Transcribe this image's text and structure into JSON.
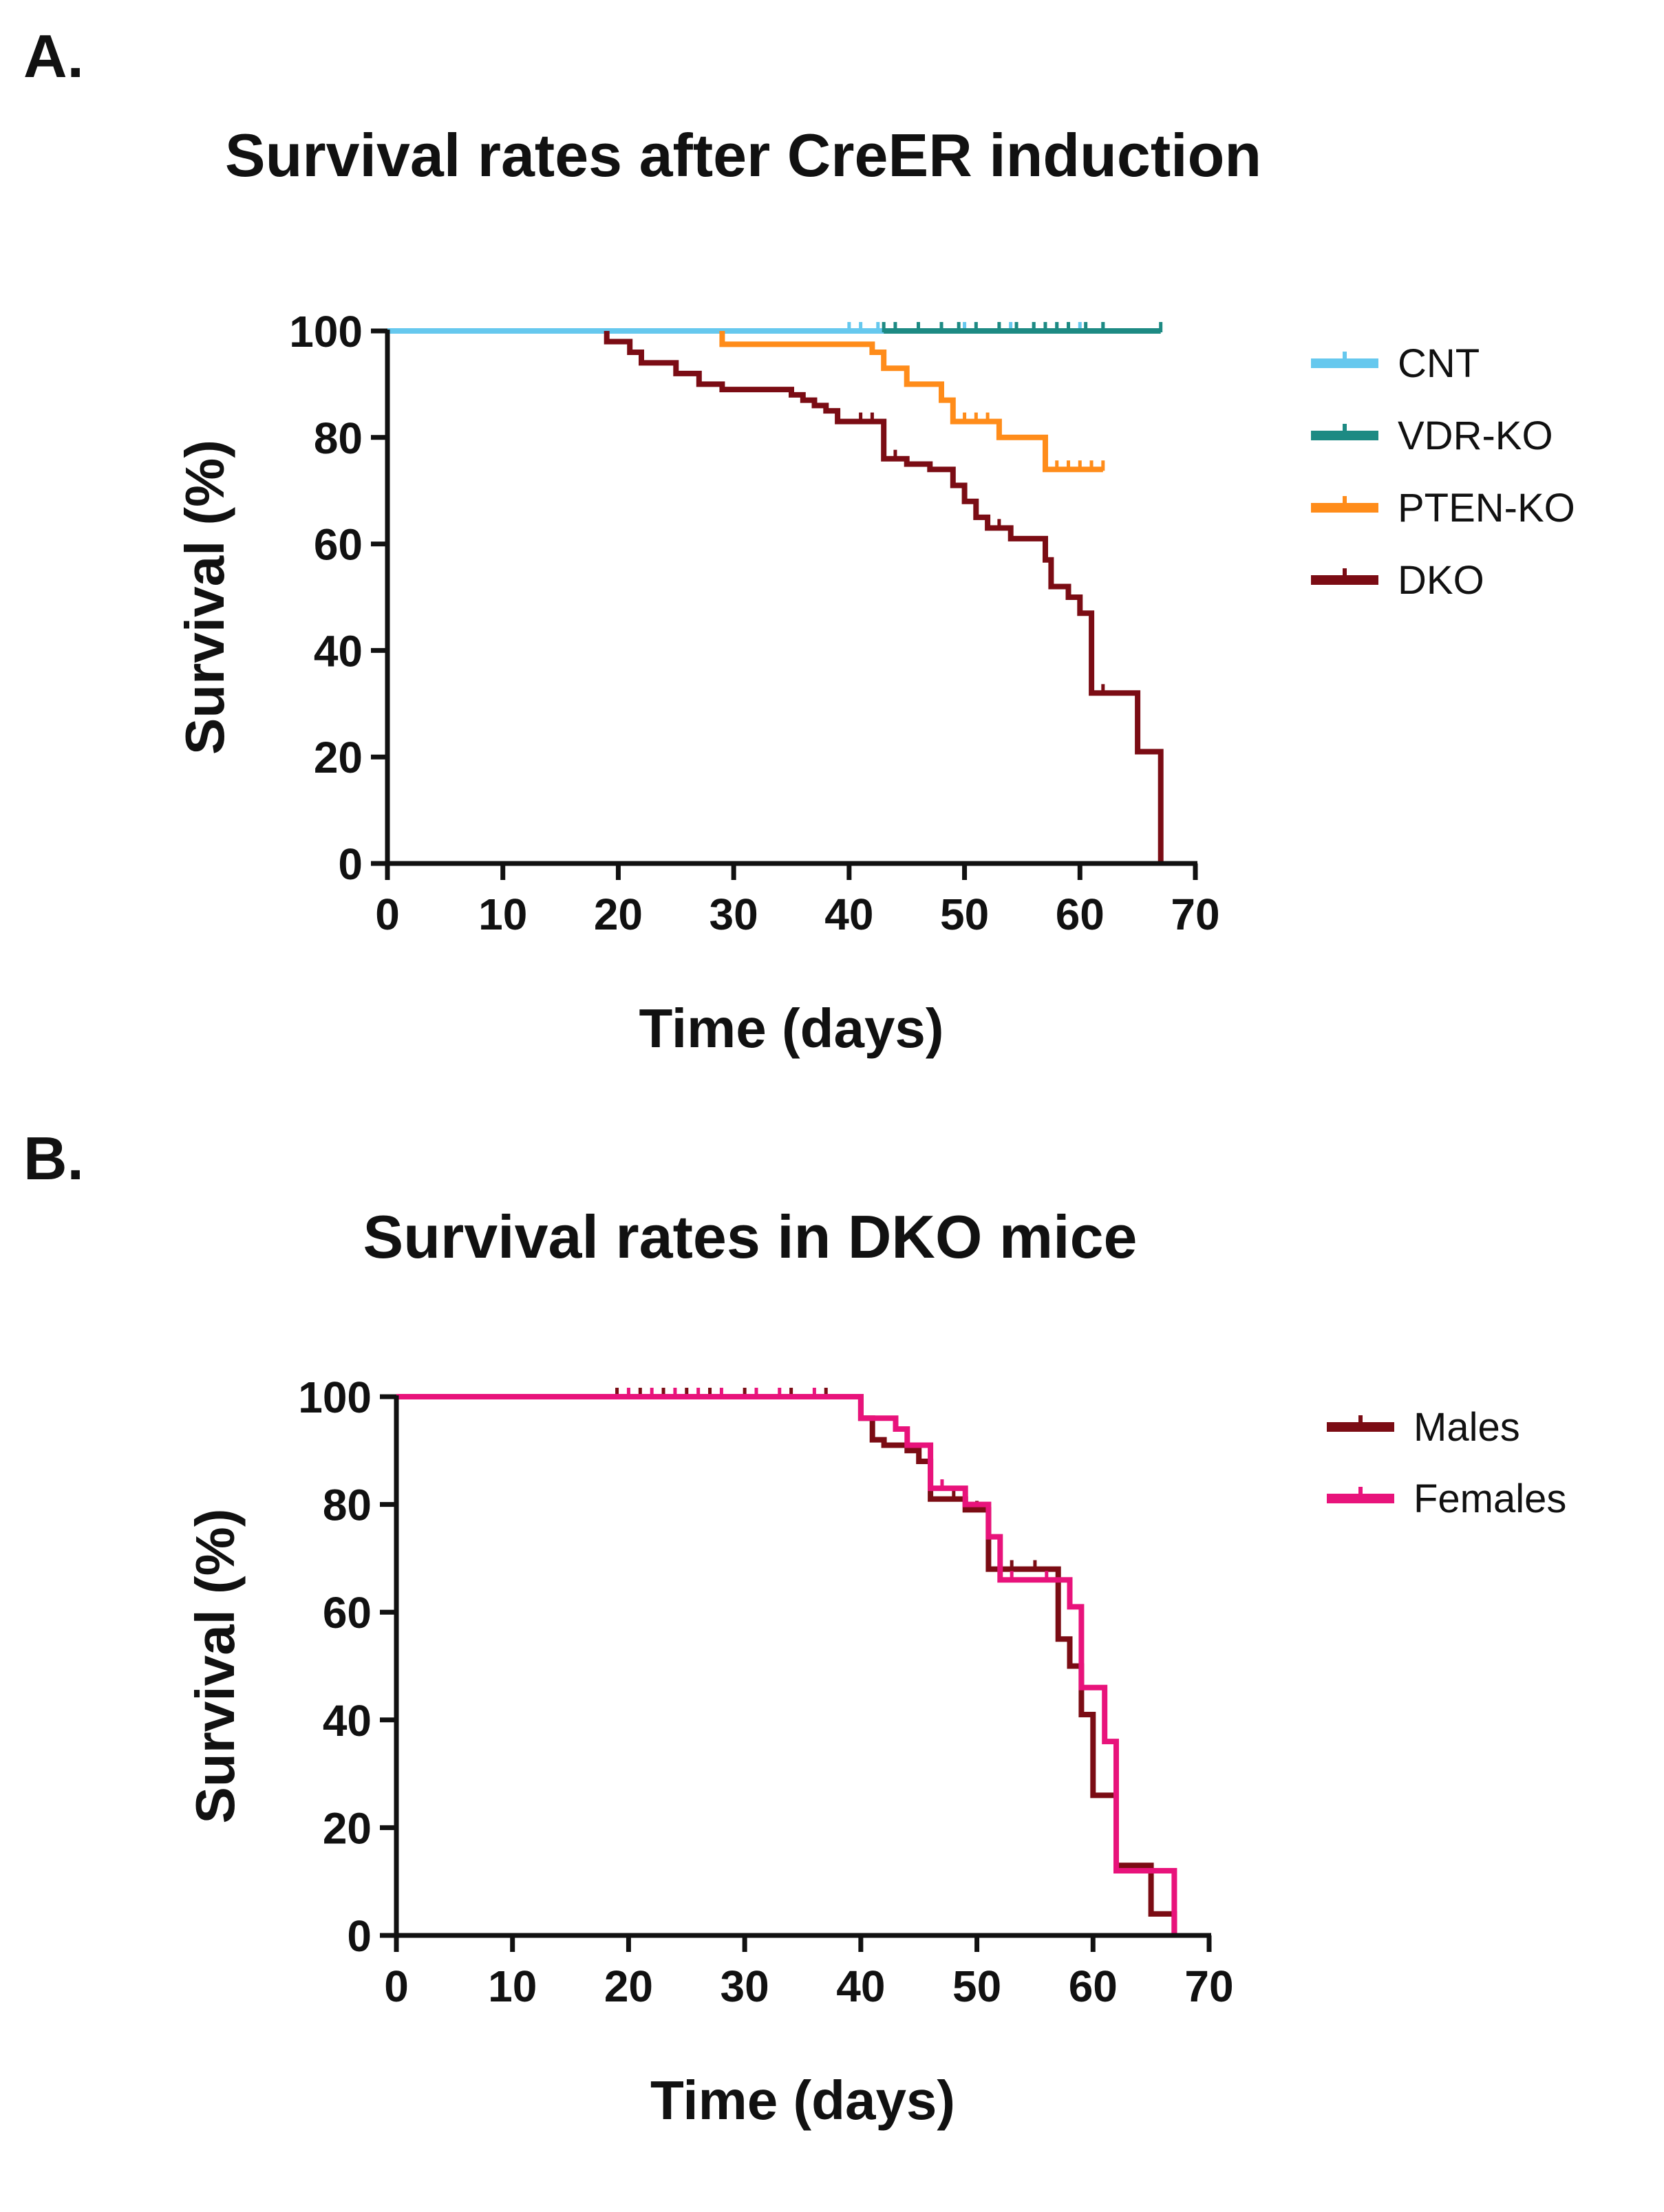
{
  "panels": [
    {
      "label": "A."
    },
    {
      "label": "B."
    }
  ],
  "chart_data": [
    {
      "type": "line",
      "step": true,
      "title": "Survival rates after CreER induction",
      "xlabel": "Time (days)",
      "ylabel": "Survival (%)",
      "xlim": [
        0,
        70
      ],
      "ylim": [
        0,
        100
      ],
      "xticks": [
        0,
        10,
        20,
        30,
        40,
        50,
        60,
        70
      ],
      "yticks": [
        0,
        20,
        40,
        60,
        80,
        100
      ],
      "legend_position": "right",
      "series": [
        {
          "name": "CNT",
          "color": "#66c8ee",
          "points": [
            [
              0,
              100
            ],
            [
              62,
              100
            ]
          ],
          "censored": [
            [
              40,
              100
            ],
            [
              41,
              100
            ],
            [
              42.5,
              100
            ],
            [
              50,
              100
            ],
            [
              54,
              100
            ],
            [
              56,
              100
            ],
            [
              58,
              100
            ],
            [
              60,
              100
            ],
            [
              62,
              100
            ]
          ]
        },
        {
          "name": "VDR-KO",
          "color": "#1d8a83",
          "points": [
            [
              43,
              100
            ],
            [
              67,
              100
            ]
          ],
          "censored": [
            [
              43,
              100
            ],
            [
              44,
              100
            ],
            [
              46,
              100
            ],
            [
              48,
              100
            ],
            [
              49.5,
              100
            ],
            [
              51,
              100
            ],
            [
              53,
              100
            ],
            [
              54.5,
              100
            ],
            [
              56,
              100
            ],
            [
              57,
              100
            ],
            [
              58,
              100
            ],
            [
              59,
              100
            ],
            [
              60.5,
              100
            ],
            [
              62,
              100
            ],
            [
              67,
              100
            ]
          ]
        },
        {
          "name": "PTEN-KO",
          "color": "#ff8c1a",
          "points": [
            [
              29,
              100
            ],
            [
              29,
              97.5
            ],
            [
              42,
              97.5
            ],
            [
              42,
              96
            ],
            [
              43,
              96
            ],
            [
              43,
              93
            ],
            [
              45,
              93
            ],
            [
              45,
              90
            ],
            [
              48,
              90
            ],
            [
              48,
              87
            ],
            [
              49,
              87
            ],
            [
              49,
              83
            ],
            [
              53,
              83
            ],
            [
              53,
              80
            ],
            [
              57,
              80
            ],
            [
              57,
              74
            ],
            [
              62,
              74
            ]
          ],
          "censored": [
            [
              29,
              97.5
            ],
            [
              50,
              83
            ],
            [
              51,
              83
            ],
            [
              52,
              83
            ],
            [
              58,
              74
            ],
            [
              59,
              74
            ],
            [
              60,
              74
            ],
            [
              61,
              74
            ],
            [
              62,
              74
            ]
          ]
        },
        {
          "name": "DKO",
          "color": "#7b0c14",
          "points": [
            [
              19,
              100
            ],
            [
              19,
              98
            ],
            [
              21,
              98
            ],
            [
              21,
              96
            ],
            [
              22,
              96
            ],
            [
              22,
              94
            ],
            [
              25,
              94
            ],
            [
              25,
              92
            ],
            [
              27,
              92
            ],
            [
              27,
              90
            ],
            [
              29,
              90
            ],
            [
              29,
              89
            ],
            [
              35,
              89
            ],
            [
              35,
              88
            ],
            [
              36,
              88
            ],
            [
              36,
              87
            ],
            [
              37,
              87
            ],
            [
              37,
              86
            ],
            [
              38,
              86
            ],
            [
              38,
              85
            ],
            [
              39,
              85
            ],
            [
              39,
              83
            ],
            [
              43,
              83
            ],
            [
              43,
              76
            ],
            [
              45,
              76
            ],
            [
              45,
              75
            ],
            [
              47,
              75
            ],
            [
              47,
              74
            ],
            [
              49,
              74
            ],
            [
              49,
              71
            ],
            [
              50,
              71
            ],
            [
              50,
              68
            ],
            [
              51,
              68
            ],
            [
              51,
              65
            ],
            [
              52,
              65
            ],
            [
              52,
              63
            ],
            [
              54,
              63
            ],
            [
              54,
              61
            ],
            [
              57,
              61
            ],
            [
              57,
              57
            ],
            [
              57.5,
              57
            ],
            [
              57.5,
              52
            ],
            [
              59,
              52
            ],
            [
              59,
              50
            ],
            [
              60,
              50
            ],
            [
              60,
              47
            ],
            [
              61,
              47
            ],
            [
              61,
              32
            ],
            [
              65,
              32
            ],
            [
              65,
              21
            ],
            [
              67,
              21
            ],
            [
              67,
              0
            ]
          ],
          "censored": [
            [
              41,
              83
            ],
            [
              42,
              83
            ],
            [
              44,
              76
            ],
            [
              53,
              63
            ],
            [
              59,
              50
            ],
            [
              62,
              32
            ]
          ]
        }
      ]
    },
    {
      "type": "line",
      "step": true,
      "title": "Survival rates in DKO mice",
      "xlabel": "Time (days)",
      "ylabel": "Survival (%)",
      "xlim": [
        0,
        70
      ],
      "ylim": [
        0,
        100
      ],
      "xticks": [
        0,
        10,
        20,
        30,
        40,
        50,
        60,
        70
      ],
      "yticks": [
        0,
        20,
        40,
        60,
        80,
        100
      ],
      "legend_position": "right",
      "series": [
        {
          "name": "Males",
          "color": "#7b0c14",
          "points": [
            [
              0,
              100
            ],
            [
              40,
              100
            ],
            [
              40,
              96
            ],
            [
              41,
              96
            ],
            [
              41,
              92
            ],
            [
              42,
              92
            ],
            [
              42,
              91
            ],
            [
              44,
              91
            ],
            [
              44,
              90
            ],
            [
              45,
              90
            ],
            [
              45,
              88
            ],
            [
              46,
              88
            ],
            [
              46,
              81
            ],
            [
              49,
              81
            ],
            [
              49,
              79
            ],
            [
              51,
              79
            ],
            [
              51,
              68
            ],
            [
              57,
              68
            ],
            [
              57,
              55
            ],
            [
              58,
              55
            ],
            [
              58,
              50
            ],
            [
              59,
              50
            ],
            [
              59,
              41
            ],
            [
              60,
              41
            ],
            [
              60,
              26
            ],
            [
              62,
              26
            ],
            [
              62,
              13
            ],
            [
              65,
              13
            ],
            [
              65,
              4
            ],
            [
              67,
              4
            ],
            [
              67,
              0
            ]
          ],
          "censored": [
            [
              19,
              100
            ],
            [
              21,
              100
            ],
            [
              23,
              100
            ],
            [
              25,
              100
            ],
            [
              27,
              100
            ],
            [
              30,
              100
            ],
            [
              34,
              100
            ],
            [
              37,
              100
            ],
            [
              44,
              91
            ],
            [
              48,
              81
            ],
            [
              50,
              79
            ],
            [
              53,
              68
            ],
            [
              55,
              68
            ]
          ]
        },
        {
          "name": "Females",
          "color": "#e8137b",
          "points": [
            [
              0,
              100
            ],
            [
              40,
              100
            ],
            [
              40,
              96
            ],
            [
              43,
              96
            ],
            [
              43,
              94
            ],
            [
              44,
              94
            ],
            [
              44,
              91
            ],
            [
              46,
              91
            ],
            [
              46,
              83
            ],
            [
              49,
              83
            ],
            [
              49,
              80
            ],
            [
              51,
              80
            ],
            [
              51,
              74
            ],
            [
              52,
              74
            ],
            [
              52,
              66
            ],
            [
              58,
              66
            ],
            [
              58,
              61
            ],
            [
              59,
              61
            ],
            [
              59,
              46
            ],
            [
              61,
              46
            ],
            [
              61,
              36
            ],
            [
              62,
              36
            ],
            [
              62,
              12
            ],
            [
              67,
              12
            ],
            [
              67,
              0
            ]
          ],
          "censored": [
            [
              20,
              100
            ],
            [
              22,
              100
            ],
            [
              24,
              100
            ],
            [
              26,
              100
            ],
            [
              28,
              100
            ],
            [
              31,
              100
            ],
            [
              33,
              100
            ],
            [
              36,
              100
            ],
            [
              47,
              83
            ],
            [
              53,
              66
            ],
            [
              56,
              66
            ]
          ]
        }
      ]
    }
  ]
}
